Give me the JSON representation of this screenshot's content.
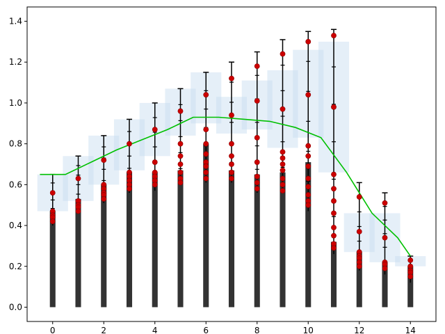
{
  "chart_data": {
    "type": "bar",
    "title": "",
    "xlabel": "",
    "ylabel": "",
    "xlim": [
      -1,
      15
    ],
    "ylim": [
      -0.07,
      1.47
    ],
    "grid": false,
    "x_ticks": [
      "0",
      "2",
      "4",
      "6",
      "8",
      "10",
      "12",
      "14"
    ],
    "y_ticks": [
      "0.0",
      "0.2",
      "0.4",
      "0.6",
      "0.8",
      "1.0",
      "1.2",
      "1.4"
    ],
    "colors": {
      "bars": "#333333",
      "points": "#cc0000",
      "line": "#00c000",
      "boxes": "#c6dbef",
      "errorbars": "#000000"
    },
    "x": [
      0,
      1,
      2,
      3,
      4,
      5,
      6,
      7,
      8,
      9,
      10,
      11,
      12,
      13,
      14
    ],
    "bar_values": [
      0.47,
      0.53,
      0.6,
      0.66,
      0.66,
      0.67,
      0.8,
      0.67,
      0.65,
      0.66,
      0.71,
      0.32,
      0.27,
      0.22,
      0.2
    ],
    "bar_base_values": [
      0.4,
      0.46,
      0.51,
      0.56,
      0.57,
      0.6,
      0.61,
      0.61,
      0.56,
      0.56,
      0.47,
      0.26,
      0.18,
      0.16,
      0.12
    ],
    "error_bars": [
      {
        "low": 0.4,
        "high": 0.65
      },
      {
        "low": 0.46,
        "high": 0.74
      },
      {
        "low": 0.51,
        "high": 0.84
      },
      {
        "low": 0.56,
        "high": 0.92
      },
      {
        "low": 0.57,
        "high": 1.0
      },
      {
        "low": 0.6,
        "high": 1.07
      },
      {
        "low": 0.61,
        "high": 1.15
      },
      {
        "low": 0.61,
        "high": 1.2
      },
      {
        "low": 0.56,
        "high": 1.25
      },
      {
        "low": 0.56,
        "high": 1.31
      },
      {
        "low": 0.47,
        "high": 1.35
      },
      {
        "low": 0.26,
        "high": 1.36
      },
      {
        "low": 0.18,
        "high": 0.61
      },
      {
        "low": 0.16,
        "high": 0.56
      },
      {
        "low": 0.12,
        "high": 0.25
      }
    ],
    "points": [
      [
        0.56,
        0.47,
        0.45,
        0.44,
        0.42
      ],
      [
        0.63,
        0.52,
        0.5,
        0.49,
        0.47
      ],
      [
        0.72,
        0.6,
        0.58,
        0.56,
        0.55,
        0.53
      ],
      [
        0.8,
        0.66,
        0.64,
        0.62,
        0.6,
        0.58
      ],
      [
        0.87,
        0.71,
        0.66,
        0.64,
        0.62,
        0.6
      ],
      [
        0.96,
        0.8,
        0.74,
        0.7,
        0.66,
        0.63,
        0.61
      ],
      [
        1.04,
        0.87,
        0.8,
        0.75,
        0.71,
        0.69,
        0.66,
        0.63
      ],
      [
        1.12,
        0.94,
        0.8,
        0.74,
        0.7,
        0.66,
        0.63
      ],
      [
        1.18,
        1.01,
        0.83,
        0.71,
        0.64,
        0.61,
        0.58
      ],
      [
        1.24,
        0.97,
        0.76,
        0.73,
        0.7,
        0.67,
        0.63,
        0.6,
        0.57
      ],
      [
        1.3,
        1.04,
        0.79,
        0.74,
        0.69,
        0.63,
        0.59,
        0.55,
        0.52,
        0.5
      ],
      [
        1.33,
        0.98,
        0.65,
        0.58,
        0.52,
        0.46,
        0.39,
        0.35,
        0.31,
        0.29
      ],
      [
        0.54,
        0.37,
        0.27,
        0.25,
        0.24,
        0.22,
        0.2
      ],
      [
        0.51,
        0.34,
        0.22,
        0.21,
        0.19
      ],
      [
        0.23,
        0.2,
        0.18,
        0.17,
        0.15
      ]
    ],
    "boxes": [
      {
        "x0": -0.6,
        "x1": 0.6,
        "low": 0.47,
        "high": 0.65
      },
      {
        "x0": 0.4,
        "x1": 1.6,
        "low": 0.52,
        "high": 0.74
      },
      {
        "x0": 1.4,
        "x1": 2.6,
        "low": 0.6,
        "high": 0.84
      },
      {
        "x0": 2.4,
        "x1": 3.6,
        "low": 0.67,
        "high": 0.92
      },
      {
        "x0": 3.4,
        "x1": 4.6,
        "low": 0.74,
        "high": 1.0
      },
      {
        "x0": 4.4,
        "x1": 5.6,
        "low": 0.84,
        "high": 1.07
      },
      {
        "x0": 5.4,
        "x1": 6.6,
        "low": 0.9,
        "high": 1.15
      },
      {
        "x0": 6.4,
        "x1": 7.6,
        "low": 0.85,
        "high": 1.03
      },
      {
        "x0": 7.4,
        "x1": 8.6,
        "low": 0.87,
        "high": 1.11
      },
      {
        "x0": 8.4,
        "x1": 9.6,
        "low": 0.78,
        "high": 1.16
      },
      {
        "x0": 9.4,
        "x1": 10.6,
        "low": 0.83,
        "high": 1.26
      },
      {
        "x0": 10.4,
        "x1": 11.6,
        "low": 0.66,
        "high": 1.3
      },
      {
        "x0": 11.4,
        "x1": 12.6,
        "low": 0.27,
        "high": 0.46
      },
      {
        "x0": 12.4,
        "x1": 13.6,
        "low": 0.22,
        "high": 0.46
      },
      {
        "x0": 13.4,
        "x1": 14.6,
        "low": 0.2,
        "high": 0.25
      }
    ],
    "line_x": [
      -0.5,
      0.5,
      1.5,
      2.5,
      3.5,
      4.5,
      5.5,
      6.5,
      7.5,
      8.5,
      9.5,
      10.5,
      11.5,
      12.5,
      13.5,
      14.0
    ],
    "line_values": [
      0.65,
      0.65,
      0.71,
      0.77,
      0.82,
      0.87,
      0.93,
      0.93,
      0.92,
      0.91,
      0.88,
      0.83,
      0.66,
      0.46,
      0.34,
      0.25
    ]
  }
}
